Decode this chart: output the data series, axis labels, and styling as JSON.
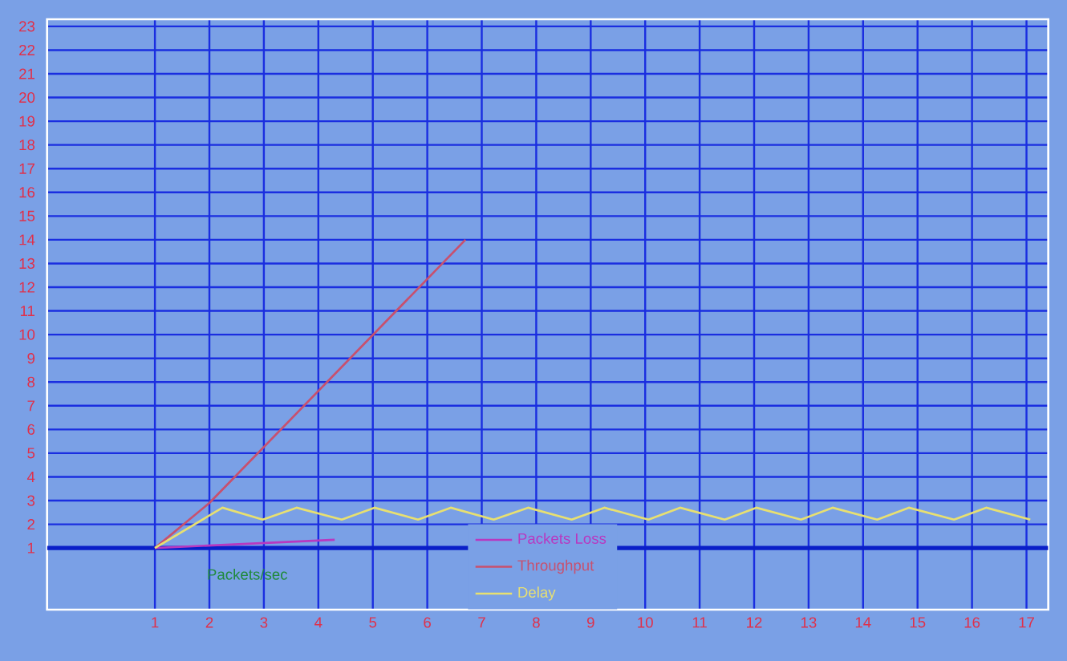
{
  "chart_data": {
    "type": "line",
    "xlabel": "Packets/sec",
    "xlim": [
      -0.98,
      17.4
    ],
    "ylim": [
      -1.6,
      23.3
    ],
    "xticks": [
      1,
      2,
      3,
      4,
      5,
      6,
      7,
      8,
      9,
      10,
      11,
      12,
      13,
      14,
      15,
      16,
      17
    ],
    "yticks": [
      1,
      2,
      3,
      4,
      5,
      6,
      7,
      8,
      9,
      10,
      11,
      12,
      13,
      14,
      15,
      16,
      17,
      18,
      19,
      20,
      21,
      22,
      23
    ],
    "grid": true,
    "legend": "bottom",
    "marker": "none",
    "line_style": "solid",
    "ref_lines": [
      {
        "axis": "y",
        "value": 1,
        "color": "#0a1fc8"
      }
    ],
    "series": [
      {
        "name": "Packets Loss",
        "color": "#b838c0",
        "x": [
          1,
          4.3
        ],
        "values": [
          1,
          1.35
        ]
      },
      {
        "name": "Throughput",
        "color": "#c8506e",
        "x": [
          1,
          2,
          6.7
        ],
        "values": [
          1,
          2.9,
          14
        ]
      },
      {
        "name": "Delay",
        "color": "#e8e070",
        "x": [
          1,
          2.24,
          2.98,
          3.6,
          4.43,
          5.03,
          5.83,
          6.43,
          7.22,
          7.85,
          8.65,
          9.25,
          10.06,
          10.64,
          11.46,
          12.04,
          12.86,
          13.44,
          14.26,
          14.84,
          15.67,
          16.26,
          17.07
        ],
        "values": [
          1,
          2.7,
          2.2,
          2.7,
          2.2,
          2.7,
          2.2,
          2.7,
          2.2,
          2.7,
          2.2,
          2.7,
          2.2,
          2.7,
          2.2,
          2.7,
          2.2,
          2.7,
          2.2,
          2.7,
          2.2,
          2.7,
          2.2
        ]
      }
    ]
  }
}
